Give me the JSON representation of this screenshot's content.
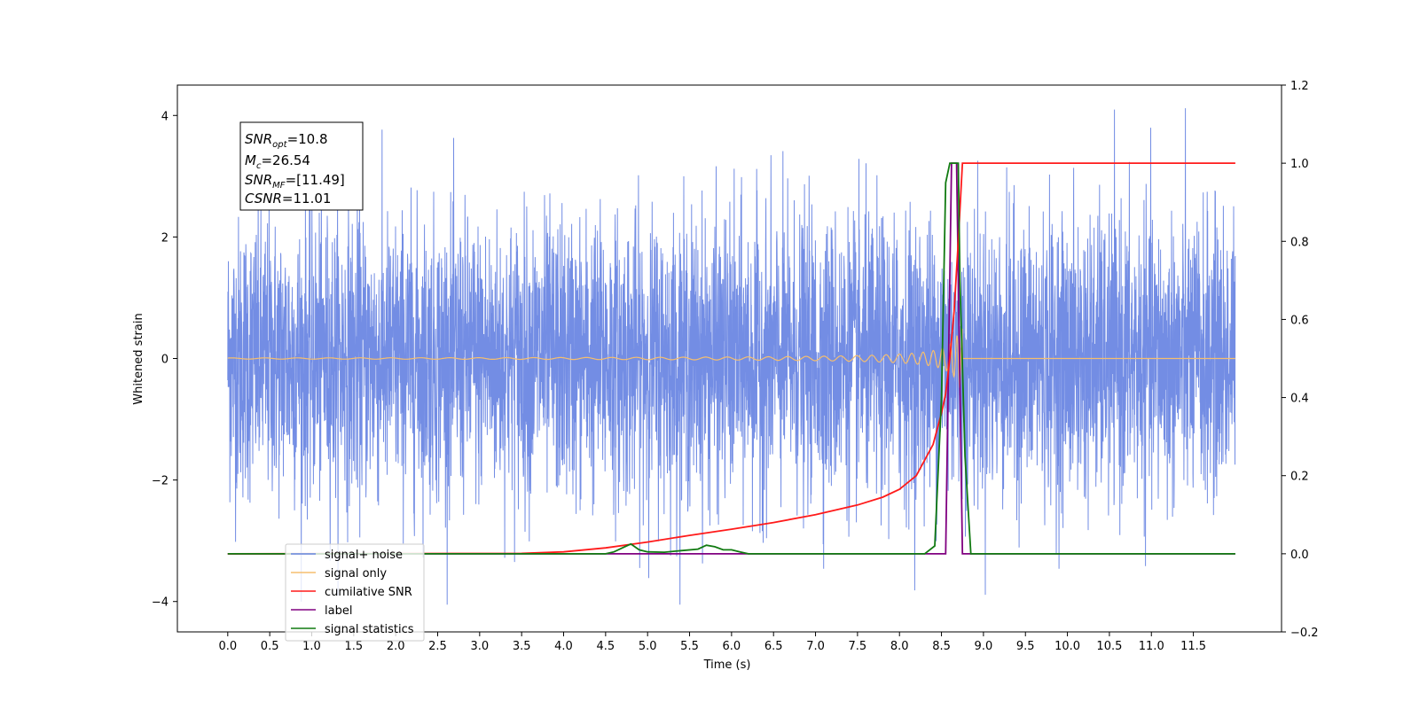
{
  "chart_data": {
    "type": "line",
    "xlabel": "Time (s)",
    "ylabel": "Whitened strain",
    "xlim": [
      -0.6,
      12.55
    ],
    "ylim": [
      -4.5,
      4.5
    ],
    "y2lim": [
      -0.2,
      1.2
    ],
    "x_ticks": [
      "0.0",
      "0.5",
      "1.0",
      "1.5",
      "2.0",
      "2.5",
      "3.0",
      "3.5",
      "4.0",
      "4.5",
      "5.0",
      "5.5",
      "6.0",
      "6.5",
      "7.0",
      "7.5",
      "8.0",
      "8.5",
      "9.0",
      "9.5",
      "10.0",
      "10.5",
      "11.0",
      "11.5"
    ],
    "y_ticks": [
      "4",
      "2",
      "0",
      "−2",
      "−4"
    ],
    "y2_ticks": [
      "1.2",
      "1.0",
      "0.8",
      "0.6",
      "0.4",
      "0.2",
      "0.0",
      "−0.2"
    ],
    "grid": false,
    "legend_placement": "lower-left",
    "info_box": {
      "snr_opt": "=10.8",
      "mc": "=26.54",
      "snr_mf": "=[11.49]",
      "csnr": "=11.01"
    },
    "series": [
      {
        "name": "signal+ noise",
        "color": "#6b87e3",
        "axis": "left",
        "description_values": {
          "x_range": [
            0,
            12
          ],
          "amplitude_std": 1.0,
          "min": -4.05,
          "max": 4.12
        }
      },
      {
        "name": "signal only",
        "color": "#f5be6e",
        "axis": "left",
        "chirp_end": 8.75,
        "peak_amplitude": 0.5
      },
      {
        "name": "cumilative SNR",
        "color": "#ff1a1a",
        "axis": "right",
        "x": [
          0.0,
          3.5,
          4.0,
          4.5,
          5.0,
          5.5,
          6.0,
          6.5,
          7.0,
          7.5,
          7.8,
          8.0,
          8.2,
          8.4,
          8.5,
          8.55,
          8.6,
          8.65,
          8.7,
          8.75,
          9.0,
          12.0
        ],
        "y": [
          0.0,
          0.001,
          0.005,
          0.015,
          0.03,
          0.047,
          0.063,
          0.08,
          0.1,
          0.125,
          0.145,
          0.165,
          0.2,
          0.28,
          0.36,
          0.41,
          0.5,
          0.62,
          0.8,
          1.0,
          1.0,
          1.0
        ]
      },
      {
        "name": "label",
        "color": "#800080",
        "axis": "right",
        "x": [
          0.0,
          8.55,
          8.62,
          8.68,
          8.75,
          12.0
        ],
        "y": [
          0.0,
          0.0,
          1.0,
          1.0,
          0.0,
          0.0
        ]
      },
      {
        "name": "signal statistics",
        "color": "#117a11",
        "axis": "right",
        "x": [
          0.0,
          4.5,
          4.6,
          4.7,
          4.8,
          4.9,
          5.0,
          5.2,
          5.4,
          5.6,
          5.7,
          5.8,
          5.9,
          6.0,
          6.1,
          6.2,
          7.6,
          8.3,
          8.42,
          8.5,
          8.55,
          8.6,
          8.65,
          8.7,
          8.72,
          8.78,
          8.85,
          12.0
        ],
        "y": [
          0.0,
          0.0,
          0.005,
          0.015,
          0.025,
          0.01,
          0.005,
          0.004,
          0.008,
          0.012,
          0.022,
          0.018,
          0.01,
          0.01,
          0.005,
          0.0,
          0.0,
          0.0,
          0.02,
          0.4,
          0.95,
          1.0,
          1.0,
          1.0,
          0.7,
          0.25,
          0.0,
          0.0
        ]
      }
    ]
  }
}
